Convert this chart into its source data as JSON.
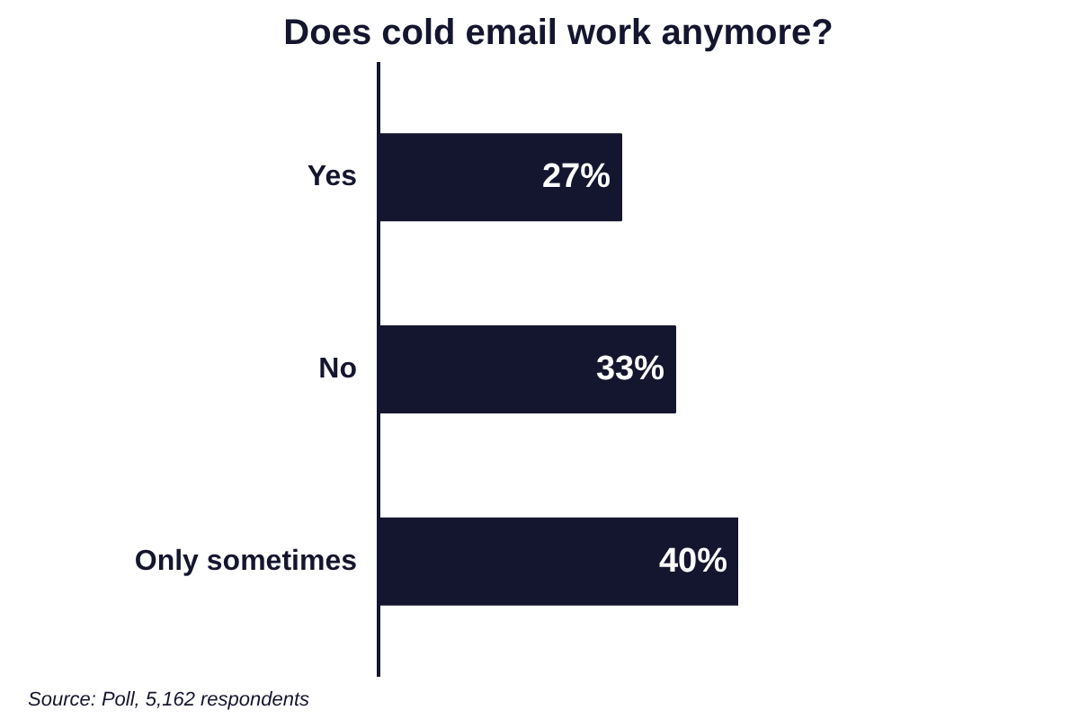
{
  "chart_data": {
    "type": "bar",
    "orientation": "horizontal",
    "title": "Does cold email work anymore?",
    "categories": [
      "Yes",
      "No",
      "Only sometimes"
    ],
    "values": [
      27,
      33,
      40
    ],
    "color": "#14152e",
    "data_labels": true,
    "value_labels": [
      "27%",
      "33%",
      "40%"
    ],
    "annotations": [
      "Source: Poll, 5,162 respondents"
    ],
    "grid": false,
    "tick_labels": "y"
  }
}
